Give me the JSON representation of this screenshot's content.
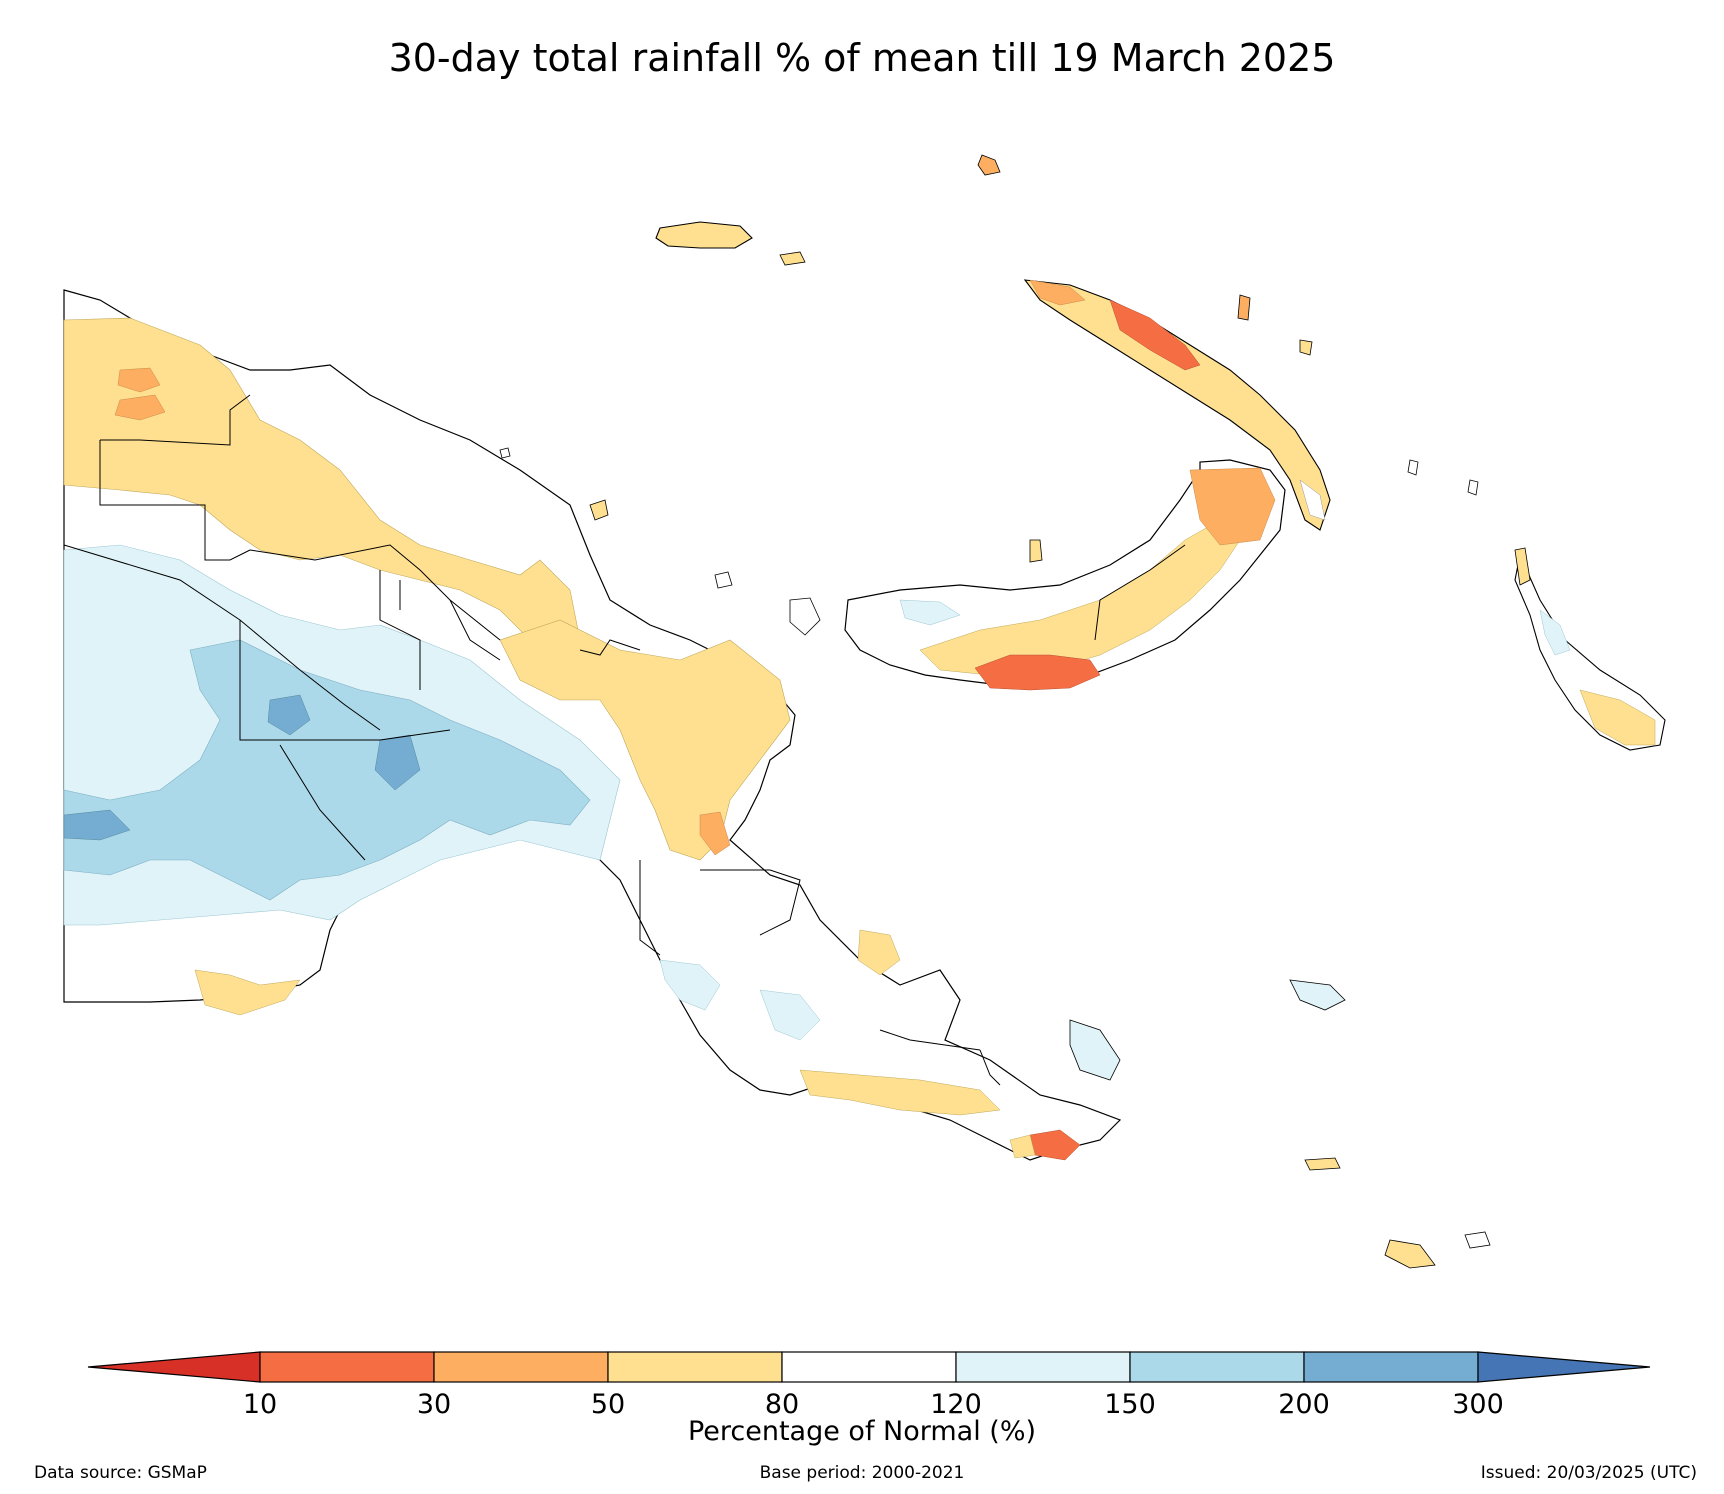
{
  "title": "30-day total rainfall % of mean till 19 March 2025",
  "colorbar": {
    "label": "Percentage of Normal (%)",
    "ticks": [
      "10",
      "30",
      "50",
      "80",
      "120",
      "150",
      "200",
      "300"
    ],
    "colors": [
      "#d73027",
      "#f46d43",
      "#fdae61",
      "#fee090",
      "#ffffff",
      "#e0f3f8",
      "#abd9e9",
      "#74add1",
      "#4575b4"
    ]
  },
  "footer": {
    "source": "Data source: GSMaP",
    "base_period": "Base period: 2000-2021",
    "issued": "Issued: 20/03/2025 (UTC)"
  }
}
